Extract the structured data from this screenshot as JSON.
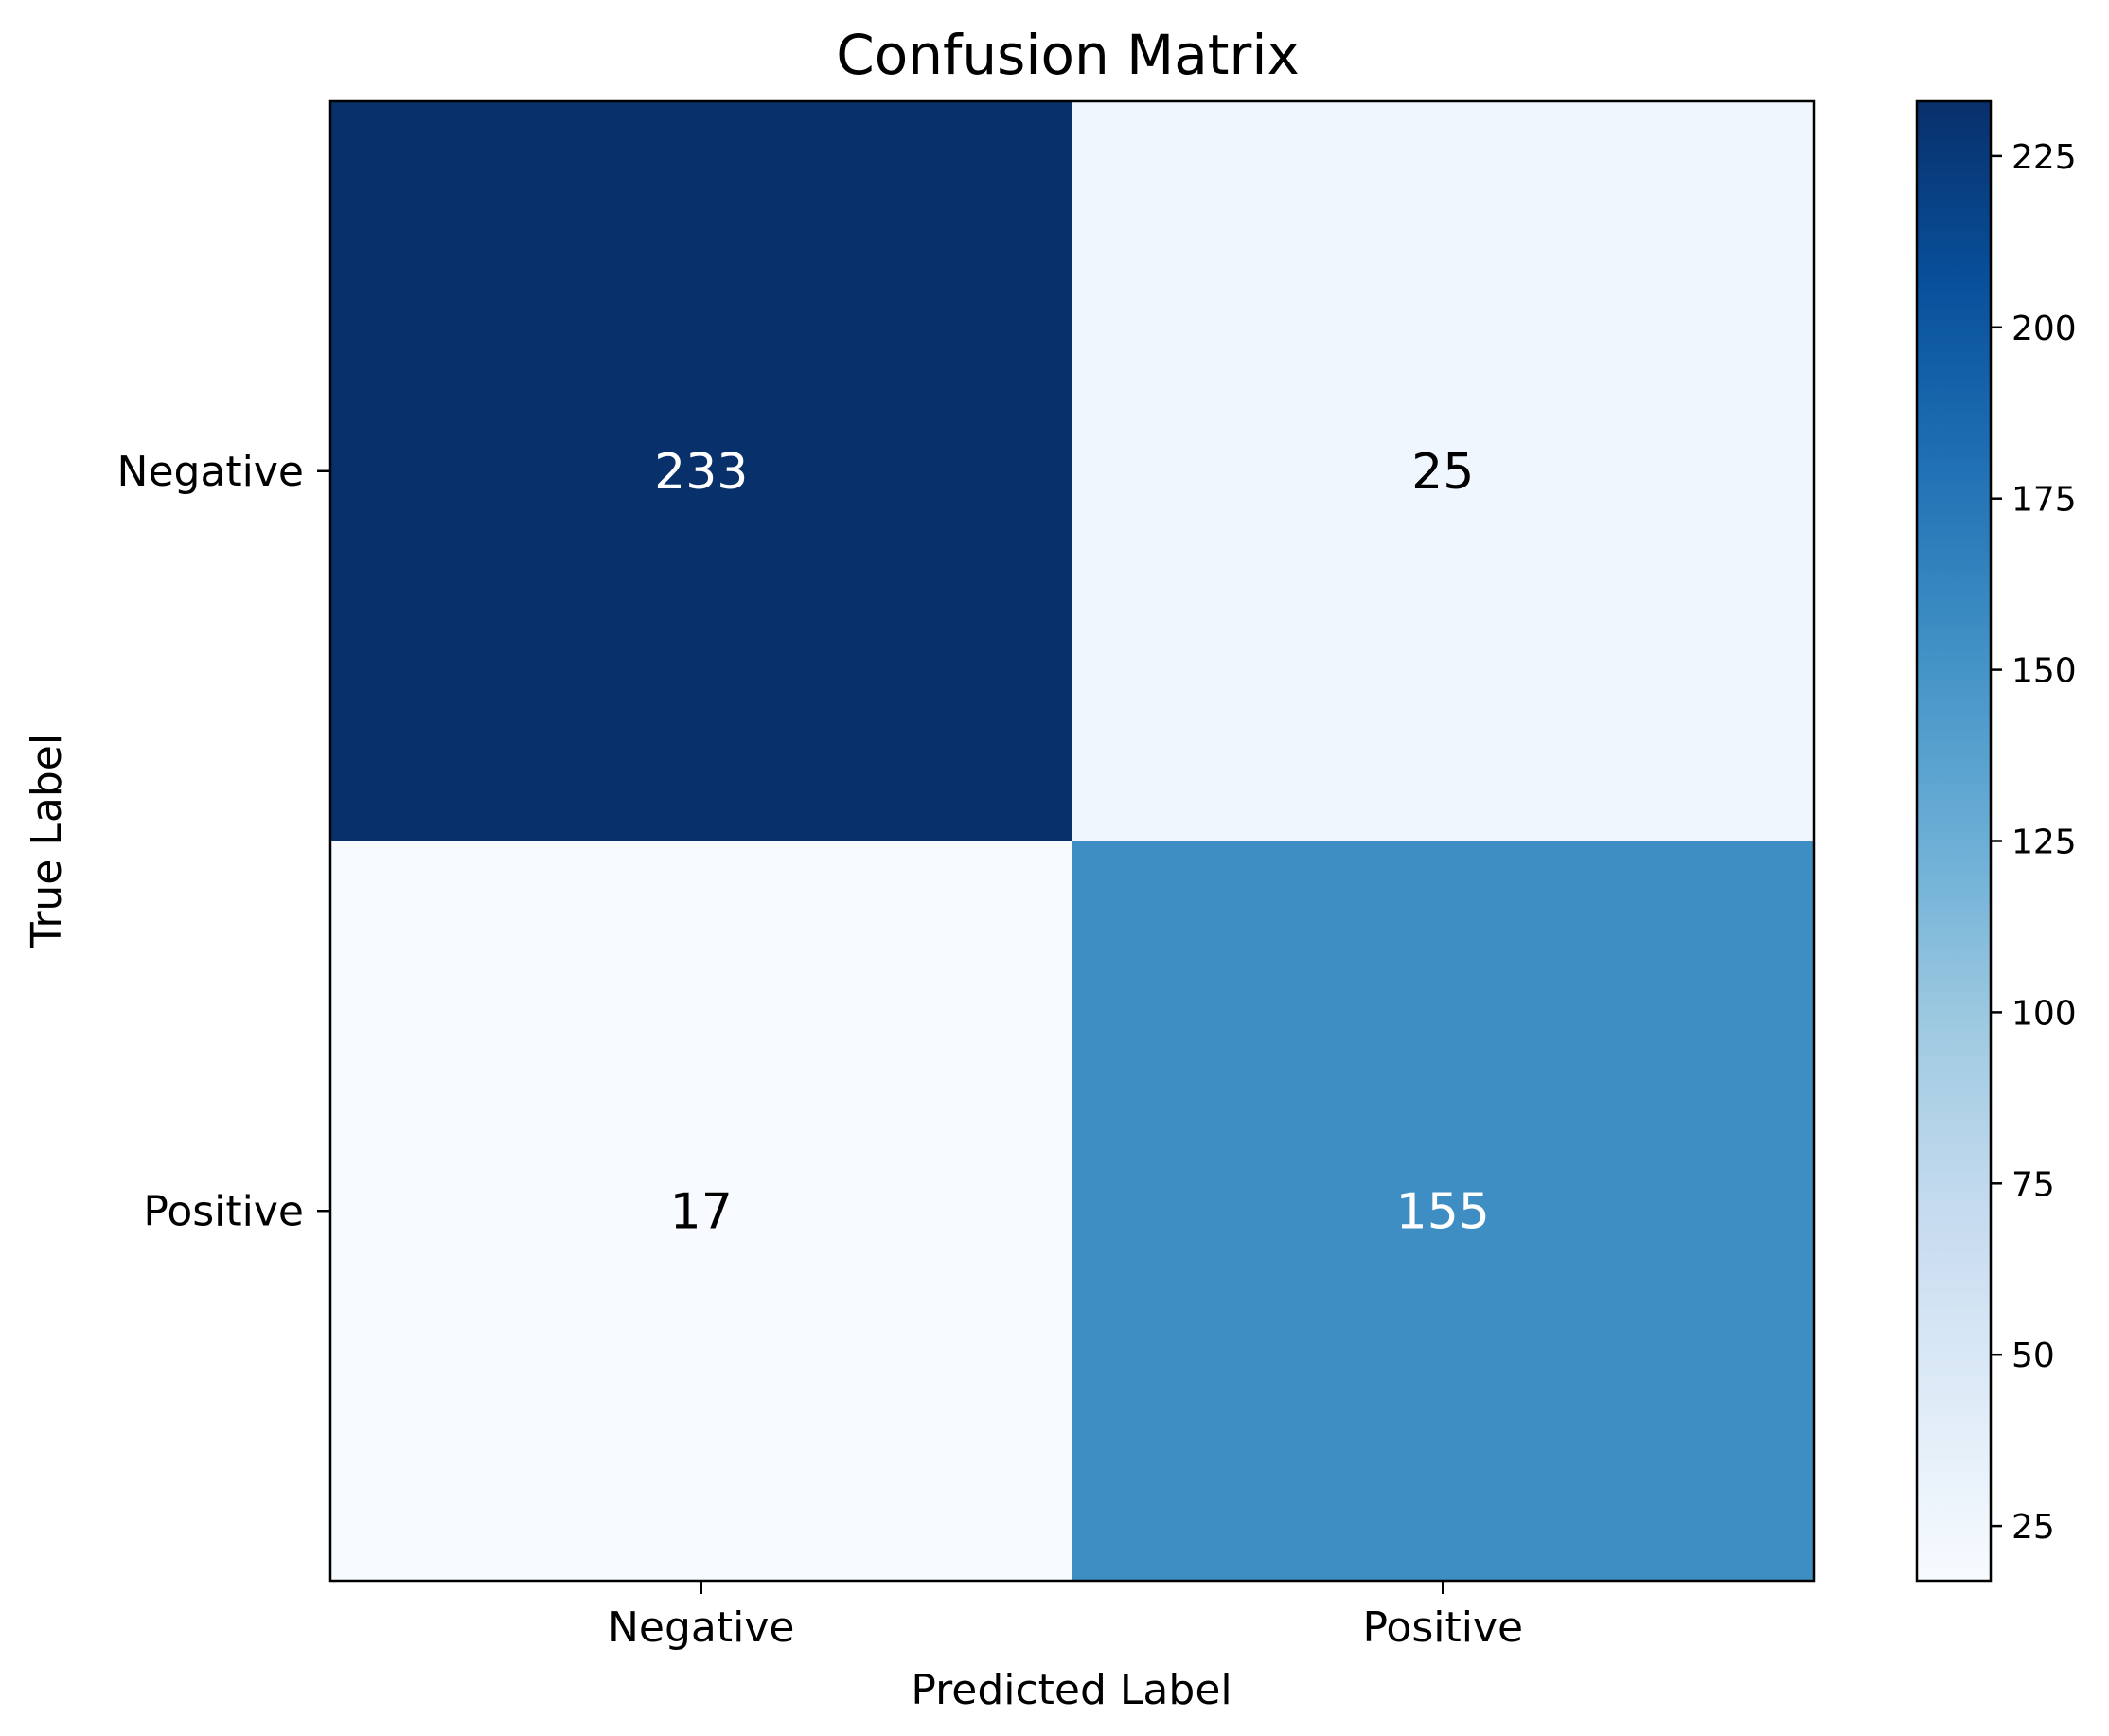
{
  "chart_data": {
    "type": "heatmap",
    "title": "Confusion Matrix",
    "xlabel": "Predicted Label",
    "ylabel": "True Label",
    "x_categories": [
      "Negative",
      "Positive"
    ],
    "y_categories": [
      "Negative",
      "Positive"
    ],
    "values": [
      [
        233,
        25
      ],
      [
        17,
        155
      ]
    ],
    "colormap": "Blues",
    "color_range": [
      17,
      233
    ],
    "colorbar_ticks": [
      "25",
      "50",
      "75",
      "100",
      "125",
      "150",
      "175",
      "200",
      "225"
    ],
    "colorbar_tick_values": [
      25,
      50,
      75,
      100,
      125,
      150,
      175,
      200,
      225
    ],
    "colorbar_stops": [
      "#f7fbff",
      "#deebf7",
      "#c6dbef",
      "#9ecae1",
      "#6baed6",
      "#4292c6",
      "#2171b5",
      "#08519c",
      "#08306b"
    ],
    "grid": false
  }
}
